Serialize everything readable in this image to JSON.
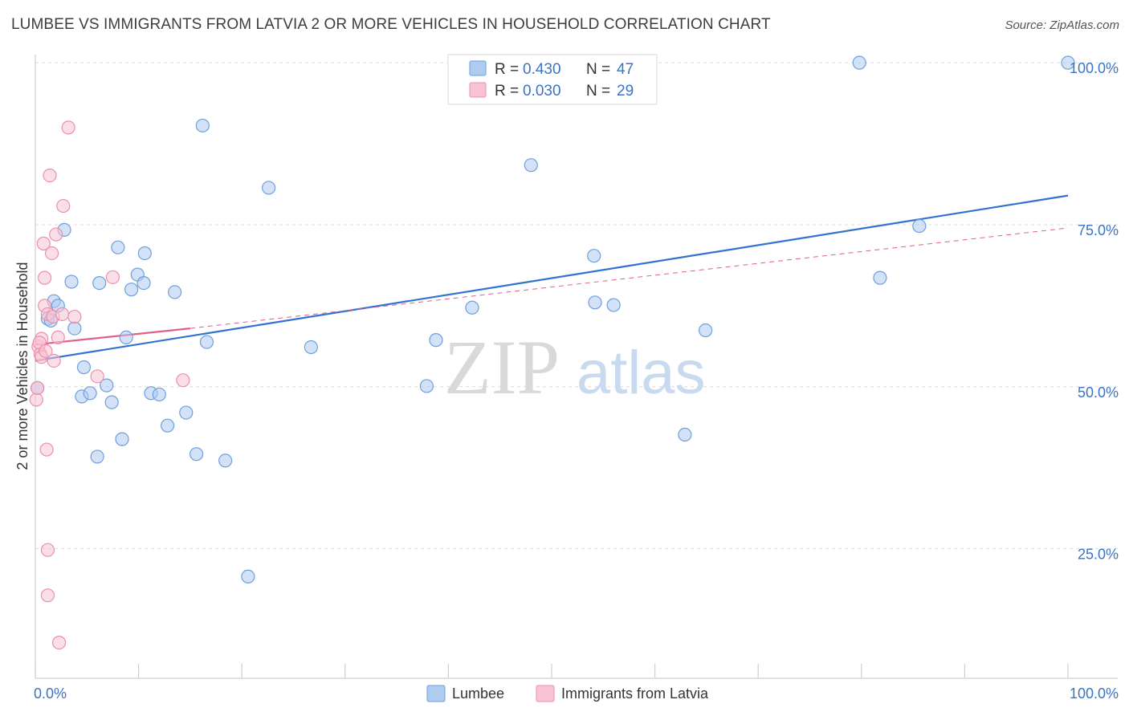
{
  "title": "LUMBEE VS IMMIGRANTS FROM LATVIA 2 OR MORE VEHICLES IN HOUSEHOLD CORRELATION CHART",
  "source": "Source: ZipAtlas.com",
  "watermark": {
    "zip": "ZIP",
    "atlas": "atlas"
  },
  "colors": {
    "lumbee_fill": "#aecbf0",
    "lumbee_stroke": "#6f9fdc",
    "lumbee_line": "#3172d0",
    "latvia_fill": "#f8c4d4",
    "latvia_stroke": "#ec8fac",
    "latvia_line": "#e0608a",
    "tick_label": "#3b74c4",
    "grid": "#dcdcdc"
  },
  "legend": {
    "items": [
      {
        "r_label": "R = ",
        "r_value": "0.430",
        "n_label": "N = ",
        "n_value": "47",
        "series": "lumbee"
      },
      {
        "r_label": "R = ",
        "r_value": "0.030",
        "n_label": "N = ",
        "n_value": "29",
        "series": "latvia"
      }
    ]
  },
  "chart_data": {
    "type": "scatter",
    "title": "LUMBEE VS IMMIGRANTS FROM LATVIA 2 OR MORE VEHICLES IN HOUSEHOLD CORRELATION CHART",
    "xlabel": "",
    "ylabel": "2 or more Vehicles in Household",
    "xlim": [
      0,
      100
    ],
    "ylim": [
      5,
      102
    ],
    "x_tick_labels": [
      {
        "value": 0,
        "label": "0.0%"
      },
      {
        "value": 100,
        "label": "100.0%"
      }
    ],
    "y_tick_labels": [
      {
        "value": 25,
        "label": "25.0%"
      },
      {
        "value": 50,
        "label": "50.0%"
      },
      {
        "value": 75,
        "label": "75.0%"
      },
      {
        "value": 100,
        "label": "100.0%"
      }
    ],
    "grid": true,
    "legend_position": "top-center",
    "series": [
      {
        "name": "Lumbee",
        "key": "lumbee",
        "points": [
          [
            0.2,
            49.8
          ],
          [
            1.2,
            60.5
          ],
          [
            1.5,
            60.2
          ],
          [
            1.8,
            63.2
          ],
          [
            2.2,
            62.5
          ],
          [
            2.8,
            74.2
          ],
          [
            3.5,
            66.2
          ],
          [
            3.8,
            59.0
          ],
          [
            4.5,
            48.5
          ],
          [
            4.7,
            53.0
          ],
          [
            5.3,
            49.0
          ],
          [
            6.0,
            39.2
          ],
          [
            6.2,
            66.0
          ],
          [
            6.9,
            50.2
          ],
          [
            7.4,
            47.6
          ],
          [
            8.0,
            71.5
          ],
          [
            8.4,
            41.9
          ],
          [
            8.8,
            57.6
          ],
          [
            9.3,
            65.0
          ],
          [
            9.9,
            67.3
          ],
          [
            10.5,
            66.0
          ],
          [
            10.6,
            70.6
          ],
          [
            11.2,
            49.0
          ],
          [
            12.0,
            48.8
          ],
          [
            12.8,
            44.0
          ],
          [
            13.5,
            64.6
          ],
          [
            14.6,
            46.0
          ],
          [
            15.6,
            39.6
          ],
          [
            16.2,
            90.3
          ],
          [
            16.6,
            56.9
          ],
          [
            18.4,
            38.6
          ],
          [
            20.6,
            20.7
          ],
          [
            22.6,
            80.7
          ],
          [
            26.7,
            56.1
          ],
          [
            37.9,
            50.1
          ],
          [
            38.8,
            57.2
          ],
          [
            42.3,
            62.2
          ],
          [
            48.0,
            84.2
          ],
          [
            54.1,
            70.2
          ],
          [
            54.2,
            63.0
          ],
          [
            56.0,
            62.6
          ],
          [
            62.9,
            42.6
          ],
          [
            64.9,
            58.7
          ],
          [
            79.8,
            100.0
          ],
          [
            81.8,
            66.8
          ],
          [
            85.6,
            74.8
          ],
          [
            100.0,
            100.0
          ]
        ],
        "trendline": {
          "x": [
            0,
            100
          ],
          "y": [
            54.0,
            79.5
          ]
        }
      },
      {
        "name": "Immigrants from Latvia",
        "key": "latvia",
        "points": [
          [
            0.1,
            48.0
          ],
          [
            0.3,
            56.2
          ],
          [
            0.5,
            55.0
          ],
          [
            0.6,
            54.6
          ],
          [
            0.6,
            57.4
          ],
          [
            0.8,
            72.1
          ],
          [
            0.9,
            66.8
          ],
          [
            0.9,
            62.5
          ],
          [
            1.1,
            40.3
          ],
          [
            1.2,
            61.2
          ],
          [
            1.2,
            24.8
          ],
          [
            1.2,
            17.8
          ],
          [
            1.4,
            82.6
          ],
          [
            1.6,
            70.6
          ],
          [
            1.7,
            60.8
          ],
          [
            1.8,
            54.0
          ],
          [
            2.0,
            73.5
          ],
          [
            2.2,
            57.6
          ],
          [
            2.3,
            10.5
          ],
          [
            2.6,
            61.2
          ],
          [
            2.7,
            77.9
          ],
          [
            3.2,
            90.0
          ],
          [
            3.8,
            60.8
          ],
          [
            6.0,
            51.6
          ],
          [
            7.5,
            66.9
          ],
          [
            14.3,
            51.0
          ],
          [
            0.2,
            49.8
          ],
          [
            0.4,
            56.8
          ],
          [
            1.0,
            55.5
          ]
        ],
        "trendline": {
          "x": [
            0,
            15
          ],
          "y": [
            56.5,
            59.0
          ],
          "dashed_extension": {
            "x": [
              15,
              100
            ],
            "y": [
              59.0,
              74.5
            ]
          }
        }
      }
    ]
  },
  "bottom_legend": [
    "Lumbee",
    "Immigrants from Latvia"
  ]
}
